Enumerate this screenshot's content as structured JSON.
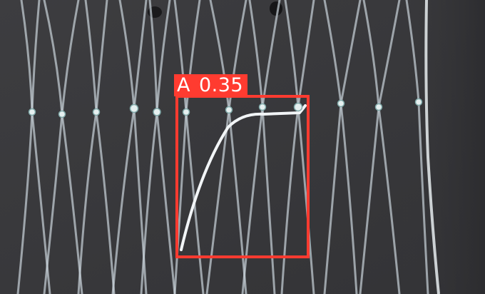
{
  "detection": {
    "class_label": "A",
    "confidence": "0.35",
    "box_color": "#ff3b30",
    "label_text_color": "#ffffff"
  },
  "scene": {
    "background_color": "#3a3a3e",
    "strand_color": "#c9d3da"
  }
}
